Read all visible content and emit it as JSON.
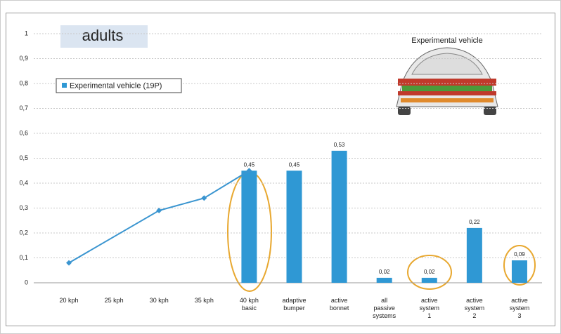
{
  "chart_data": {
    "type": "bar",
    "badge": "adults",
    "image_caption": "Experimental vehicle",
    "categories": [
      "20 kph",
      "25 kph",
      "30 kph",
      "35 kph",
      "40 kph\nbasic",
      "adaptive\nbumper",
      "active\nbonnet",
      "all\npassive\nsystems",
      "active\nsystem\n1",
      "active\nsystem\n2",
      "active\nsystem\n3"
    ],
    "series": [
      {
        "name": "Experimental vehicle (19P)",
        "type": "bar",
        "color": "#2f98d4",
        "values": [
          null,
          null,
          null,
          null,
          0.45,
          0.45,
          0.53,
          0.02,
          0.02,
          0.22,
          0.09
        ],
        "value_labels": [
          null,
          null,
          null,
          null,
          "0,45",
          "0,45",
          "0,53",
          "0,02",
          "0,02",
          "0,22",
          "0,09"
        ]
      },
      {
        "type": "line",
        "color": "#3a95d0",
        "connect_gaps": true,
        "values": [
          0.08,
          null,
          0.29,
          0.34,
          0.45,
          null,
          null,
          null,
          null,
          null,
          null
        ]
      }
    ],
    "ylim": [
      0,
      1
    ],
    "yticks": [
      0,
      {
        "value": 0.1,
        "label": "0,1"
      },
      {
        "value": 0.2,
        "label": "0,2"
      },
      {
        "value": 0.3,
        "label": "0,3"
      },
      {
        "value": 0.4,
        "label": "0,4"
      },
      {
        "value": 0.5,
        "label": "0,5"
      },
      {
        "value": 0.6,
        "label": "0,6"
      },
      {
        "value": 0.7,
        "label": "0,7"
      },
      {
        "value": 0.8,
        "label": "0,8"
      },
      {
        "value": 0.9,
        "label": "0,9"
      },
      1
    ],
    "grid": true,
    "legend": "top-left"
  }
}
